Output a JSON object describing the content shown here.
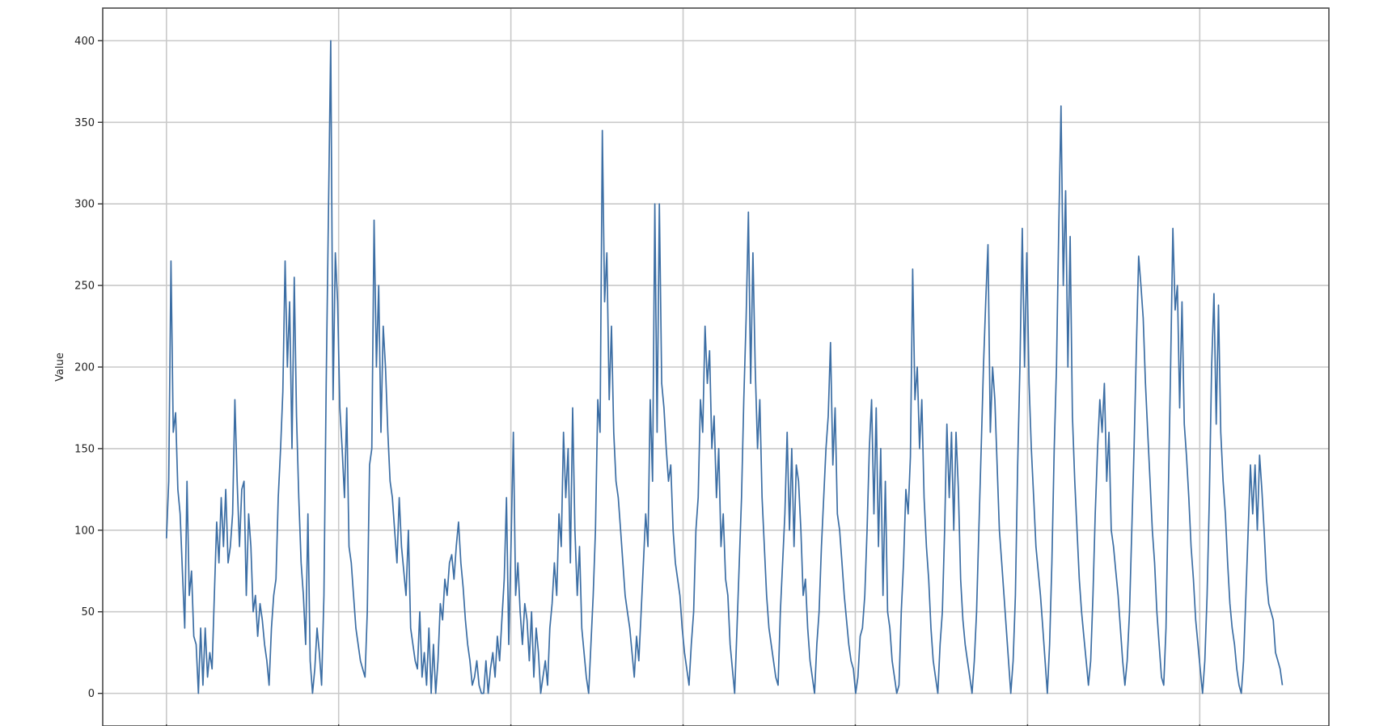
{
  "chart_data": {
    "type": "line",
    "title": "",
    "xlabel": "",
    "ylabel": "Value",
    "ylim": [
      -20,
      420
    ],
    "xlim": [
      -3.7,
      67.5
    ],
    "x_tick_count": 7,
    "y_ticks": [
      0,
      50,
      100,
      150,
      200,
      250,
      300,
      350,
      400
    ],
    "y_tick_labels": [
      "0",
      "50",
      "100",
      "150",
      "200",
      "250",
      "300",
      "350",
      "400"
    ],
    "grid": true,
    "legend": "none",
    "color": "#3c6ea4",
    "series": [
      {
        "values": [
          95,
          130,
          265,
          160,
          172,
          125,
          110,
          75,
          40,
          130,
          60,
          75,
          35,
          30,
          0,
          40,
          5,
          40,
          10,
          25,
          15,
          60,
          105,
          80,
          120,
          90,
          125,
          80,
          90,
          110,
          180,
          130,
          90,
          125,
          130,
          60,
          110,
          90,
          50,
          60,
          35,
          55,
          45,
          30,
          20,
          5,
          40,
          60,
          70,
          120,
          150,
          185,
          265,
          200,
          240,
          150,
          255,
          170,
          120,
          80,
          60,
          30,
          110,
          20,
          0,
          15,
          40,
          25,
          5,
          60,
          190,
          295,
          400,
          180,
          270,
          240,
          175,
          150,
          120,
          175,
          90,
          80,
          60,
          40,
          30,
          20,
          15,
          10,
          50,
          140,
          150,
          290,
          200,
          250,
          160,
          225,
          200,
          160,
          130,
          120,
          100,
          80,
          120,
          90,
          75,
          60,
          100,
          40,
          30,
          20,
          15,
          50,
          10,
          25,
          5,
          40,
          0,
          30,
          0,
          20,
          55,
          45,
          70,
          60,
          80,
          85,
          70,
          90,
          105,
          80,
          65,
          45,
          30,
          20,
          5,
          10,
          20,
          5,
          0,
          0,
          20,
          0,
          15,
          25,
          10,
          35,
          20,
          45,
          70,
          120,
          30,
          90,
          160,
          60,
          80,
          50,
          30,
          55,
          45,
          20,
          50,
          10,
          40,
          25,
          0,
          10,
          20,
          5,
          40,
          55,
          80,
          60,
          110,
          90,
          160,
          120,
          150,
          80,
          175,
          100,
          60,
          90,
          40,
          25,
          10,
          0,
          30,
          60,
          100,
          180,
          160,
          345,
          240,
          270,
          180,
          225,
          160,
          130,
          120,
          100,
          80,
          60,
          50,
          40,
          25,
          10,
          35,
          20,
          50,
          80,
          110,
          90,
          180,
          130,
          300,
          160,
          300,
          190,
          175,
          150,
          130,
          140,
          100,
          80,
          70,
          60,
          40,
          25,
          15,
          5,
          30,
          50,
          100,
          120,
          180,
          160,
          225,
          190,
          210,
          150,
          170,
          120,
          150,
          90,
          110,
          70,
          60,
          30,
          15,
          0,
          40,
          80,
          120,
          180,
          230,
          295,
          190,
          270,
          200,
          150,
          180,
          120,
          90,
          60,
          40,
          30,
          20,
          10,
          5,
          50,
          80,
          110,
          160,
          100,
          150,
          90,
          140,
          130,
          100,
          60,
          70,
          40,
          20,
          10,
          0,
          30,
          50,
          90,
          120,
          150,
          170,
          215,
          140,
          175,
          110,
          100,
          80,
          60,
          45,
          30,
          20,
          15,
          0,
          10,
          35,
          40,
          60,
          100,
          150,
          180,
          110,
          175,
          90,
          150,
          60,
          130,
          50,
          40,
          20,
          10,
          0,
          5,
          50,
          80,
          125,
          110,
          145,
          260,
          180,
          200,
          150,
          180,
          120,
          90,
          70,
          40,
          20,
          10,
          0,
          30,
          50,
          100,
          165,
          120,
          160,
          100,
          160,
          125,
          70,
          45,
          30,
          20,
          10,
          0,
          20,
          50,
          100,
          150,
          200,
          240,
          275,
          160,
          200,
          180,
          140,
          100,
          80,
          60,
          40,
          20,
          0,
          20,
          60,
          140,
          200,
          285,
          200,
          270,
          190,
          150,
          120,
          90,
          75,
          60,
          40,
          20,
          0,
          30,
          80,
          150,
          200,
          285,
          360,
          250,
          308,
          200,
          280,
          170,
          130,
          100,
          70,
          50,
          35,
          20,
          5,
          20,
          60,
          110,
          150,
          180,
          160,
          190,
          130,
          160,
          100,
          90,
          75,
          60,
          40,
          20,
          5,
          20,
          50,
          100,
          150,
          210,
          268,
          250,
          230,
          190,
          160,
          130,
          100,
          80,
          50,
          30,
          10,
          5,
          40,
          120,
          200,
          285,
          235,
          250,
          175,
          240,
          165,
          145,
          120,
          90,
          70,
          45,
          30,
          15,
          0,
          20,
          60,
          120,
          200,
          245,
          165,
          238,
          160,
          130,
          110,
          80,
          55,
          40,
          30,
          15,
          5,
          0,
          20,
          60,
          100,
          140,
          110,
          140,
          100,
          146,
          125,
          100,
          70,
          55,
          50,
          45,
          25,
          20,
          15,
          5
        ]
      }
    ]
  }
}
